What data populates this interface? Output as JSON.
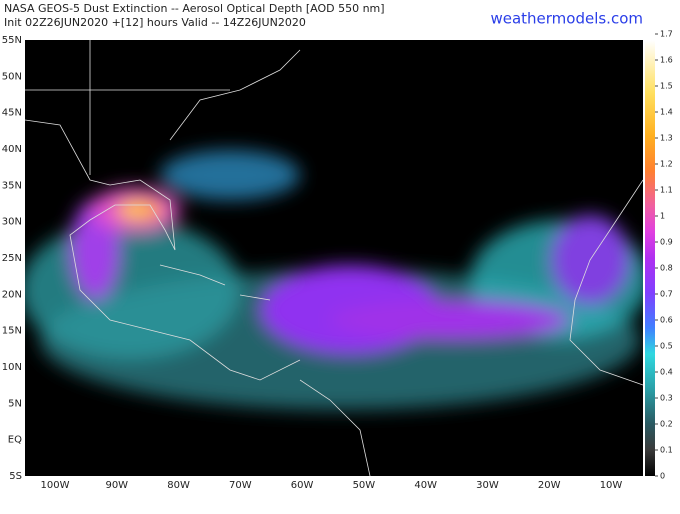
{
  "header": {
    "title": "NASA GEOS-5 Dust Extinction -- Aerosol Optical Depth [AOD 550 nm]",
    "subtitle": "Init 02Z26JUN2020 +[12] hours Valid -- 14Z26JUN2020",
    "brand": "weathermodels.com"
  },
  "map": {
    "lat_labels": [
      "55N",
      "50N",
      "45N",
      "40N",
      "35N",
      "30N",
      "25N",
      "20N",
      "15N",
      "10N",
      "5N",
      "EQ",
      "5S"
    ],
    "lon_labels": [
      "100W",
      "90W",
      "80W",
      "70W",
      "60W",
      "50W",
      "40W",
      "30W",
      "20W",
      "10W"
    ]
  },
  "colorbar": {
    "range": [
      0,
      1.7
    ],
    "ticks": [
      0,
      0.1,
      0.2,
      0.3,
      0.4,
      0.5,
      0.6,
      0.7,
      0.8,
      0.9,
      1,
      1.1,
      1.2,
      1.3,
      1.4,
      1.5,
      1.6,
      1.7
    ]
  }
}
